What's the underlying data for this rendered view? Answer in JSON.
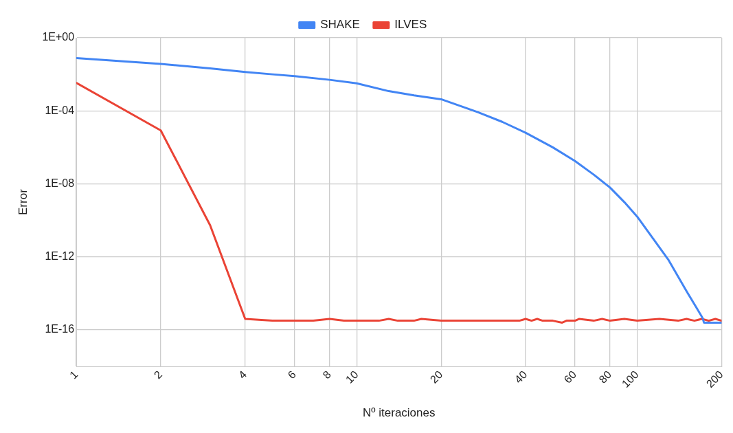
{
  "chart_data": {
    "type": "line",
    "xlabel": "Nº iteraciones",
    "ylabel": "Error",
    "log": "xy",
    "grid": true,
    "legend": "top",
    "marker": "none",
    "line_style": "solid",
    "xlim": [
      1,
      200
    ],
    "xticks": [
      1,
      2,
      4,
      6,
      8,
      10,
      20,
      40,
      60,
      80,
      100,
      200
    ],
    "ylim": [
      1e-18,
      1
    ],
    "yticks": [
      {
        "value": 1,
        "label": "1E+00"
      },
      {
        "value": 0.0001,
        "label": "1E-04"
      },
      {
        "value": 1e-08,
        "label": "1E-08"
      },
      {
        "value": 1e-12,
        "label": "1E-12"
      },
      {
        "value": 1e-16,
        "label": "1E-16"
      }
    ],
    "series": [
      {
        "name": "SHAKE",
        "color": "#4285f4",
        "x": [
          1,
          2,
          3,
          4,
          5,
          6,
          8,
          10,
          13,
          16,
          20,
          27,
          33,
          40,
          50,
          60,
          70,
          80,
          90,
          100,
          129,
          150,
          171,
          173,
          200
        ],
        "values": [
          0.078,
          0.037,
          0.021,
          0.0135,
          0.01,
          0.008,
          0.005,
          0.0032,
          0.0012,
          0.0007,
          0.00043,
          8.5e-05,
          2.5e-05,
          6.3e-06,
          1e-06,
          1.8e-07,
          3.2e-08,
          6.3e-09,
          1e-09,
          1.6e-10,
          7.2e-13,
          1.3e-14,
          4.6e-16,
          2.5e-16,
          2.5e-16
        ]
      },
      {
        "name": "ILVES",
        "color": "#ea4335",
        "x": [
          1,
          2,
          3,
          4,
          5,
          7,
          8,
          9,
          12,
          13,
          14,
          16,
          17,
          20,
          30,
          38,
          40,
          42,
          44,
          46,
          50,
          54,
          56,
          60,
          62,
          70,
          75,
          80,
          90,
          100,
          120,
          140,
          150,
          160,
          170,
          180,
          190,
          200
        ],
        "values": [
          0.0034,
          8.5e-06,
          5.4e-11,
          4e-16,
          3.2e-16,
          3.2e-16,
          4e-16,
          3.2e-16,
          3.2e-16,
          4e-16,
          3.2e-16,
          3.2e-16,
          4e-16,
          3.2e-16,
          3.2e-16,
          3.2e-16,
          4e-16,
          3.2e-16,
          4e-16,
          3.2e-16,
          3.2e-16,
          2.5e-16,
          3.2e-16,
          3.2e-16,
          4e-16,
          3.2e-16,
          4e-16,
          3.2e-16,
          4e-16,
          3.2e-16,
          4e-16,
          3.2e-16,
          4e-16,
          3.2e-16,
          4e-16,
          3.2e-16,
          4e-16,
          3.2e-16
        ]
      }
    ]
  }
}
